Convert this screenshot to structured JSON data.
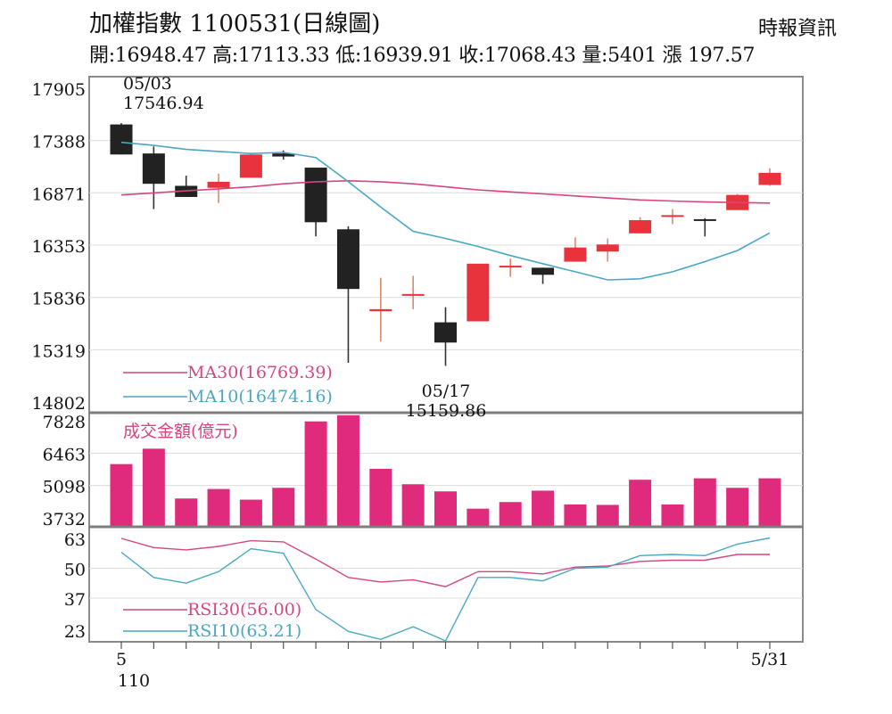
{
  "header": {
    "title": "加權指數 1100531(日線圖)",
    "source": "時報資訊",
    "stats": "開:16948.47 高:17113.33 低:16939.91 收:17068.43 量:5401 漲 197.57"
  },
  "chart_data": [
    {
      "type": "candlestick",
      "yticks": [
        "17905",
        "17388",
        "16871",
        "16353",
        "15836",
        "15319",
        "14802"
      ],
      "ylim": [
        14802,
        17905
      ],
      "grid": true,
      "up_color": "#e8323c",
      "down_color": "#222222",
      "candles": [
        {
          "open": 17546.94,
          "close": 17250,
          "high": 17560,
          "low": 17250
        },
        {
          "open": 17260,
          "close": 16960,
          "high": 17330,
          "low": 16710
        },
        {
          "open": 16940,
          "close": 16830,
          "high": 17040,
          "low": 16830
        },
        {
          "open": 16920,
          "close": 16980,
          "high": 17060,
          "low": 16770
        },
        {
          "open": 17020,
          "close": 17250,
          "high": 17260,
          "low": 17020
        },
        {
          "open": 17260,
          "close": 17230,
          "high": 17290,
          "low": 17200
        },
        {
          "open": 17120,
          "close": 16580,
          "high": 17120,
          "low": 16440
        },
        {
          "open": 16510,
          "close": 15920,
          "high": 16540,
          "low": 15190
        },
        {
          "open": 15700,
          "close": 15720,
          "high": 16030,
          "low": 15400
        },
        {
          "open": 15860,
          "close": 15870,
          "high": 16050,
          "low": 15720
        },
        {
          "open": 15590,
          "close": 15390,
          "high": 15740,
          "low": 15159.86
        },
        {
          "open": 15600,
          "close": 16170,
          "high": 16170,
          "low": 15600
        },
        {
          "open": 16140,
          "close": 16150,
          "high": 16220,
          "low": 16040
        },
        {
          "open": 16130,
          "close": 16060,
          "high": 16130,
          "low": 15970
        },
        {
          "open": 16190,
          "close": 16330,
          "high": 16430,
          "low": 16190
        },
        {
          "open": 16290,
          "close": 16360,
          "high": 16420,
          "low": 16190
        },
        {
          "open": 16470,
          "close": 16600,
          "high": 16630,
          "low": 16470
        },
        {
          "open": 16640,
          "close": 16650,
          "high": 16710,
          "low": 16560
        },
        {
          "open": 16610,
          "close": 16600,
          "high": 16620,
          "low": 16440
        },
        {
          "open": 16700,
          "close": 16850,
          "high": 16860,
          "low": 16700
        },
        {
          "open": 16948.47,
          "close": 17068.43,
          "high": 17113.33,
          "low": 16939.91
        }
      ],
      "series": [
        {
          "name": "MA30",
          "label": "MA30(16769.39)",
          "color": "#d6457f",
          "values": [
            16850,
            16870,
            16890,
            16910,
            16930,
            16960,
            16980,
            16990,
            16980,
            16960,
            16930,
            16900,
            16880,
            16860,
            16840,
            16820,
            16800,
            16790,
            16780,
            16775,
            16769.39
          ]
        },
        {
          "name": "MA10",
          "label": "MA10(16474.16)",
          "color": "#4aa7c4",
          "values": [
            17370,
            17340,
            17300,
            17280,
            17260,
            17270,
            17220,
            16980,
            16730,
            16490,
            16420,
            16340,
            16250,
            16170,
            16090,
            16010,
            16020,
            16090,
            16190,
            16300,
            16474.16
          ]
        }
      ],
      "annotations": [
        {
          "date": "05/03",
          "value": "17546.94"
        },
        {
          "date": "05/17",
          "value": "15159.86"
        }
      ]
    },
    {
      "type": "bar",
      "title": "成交金額(億元)",
      "yticks": [
        "7828",
        "6463",
        "5098",
        "3732"
      ],
      "ylim": [
        3732,
        7828
      ],
      "color": "#e02a7c",
      "values": [
        6000,
        6650,
        4550,
        4950,
        4500,
        5000,
        7800,
        8060,
        5800,
        5150,
        4850,
        4120,
        4400,
        4880,
        4300,
        4280,
        5340,
        4300,
        5400,
        5000,
        5401
      ]
    },
    {
      "type": "line",
      "yticks": [
        "63",
        "50",
        "37",
        "23"
      ],
      "ylim": [
        23,
        63
      ],
      "series": [
        {
          "name": "RSI30",
          "label": "RSI30(56.00)",
          "color": "#d6457f",
          "values": [
            63,
            59,
            58,
            59.5,
            62,
            61.5,
            54,
            46,
            44,
            45,
            42,
            48.5,
            48.5,
            47.5,
            50.5,
            51,
            53,
            53.5,
            53.5,
            56,
            56.0
          ]
        },
        {
          "name": "RSI10",
          "label": "RSI10(63.21)",
          "color": "#4aa7c4",
          "values": [
            57,
            46,
            43.5,
            48.5,
            58.5,
            56.5,
            32,
            22.5,
            19,
            24.5,
            18,
            46,
            46,
            44.5,
            50,
            50.5,
            55.5,
            56,
            55.5,
            60.5,
            63.21
          ]
        }
      ]
    }
  ],
  "xaxis": {
    "start_label": "5",
    "year_label": "110",
    "end_label": "5/31"
  }
}
